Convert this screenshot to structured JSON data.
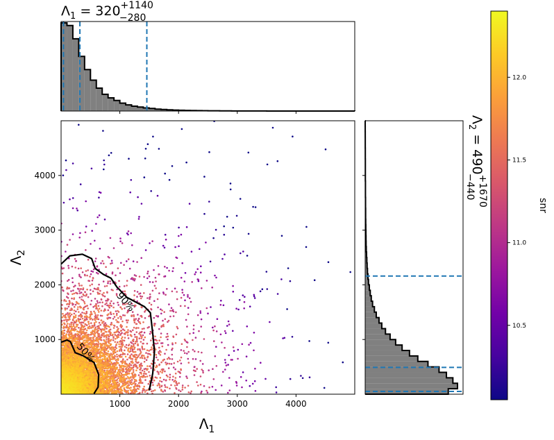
{
  "chart_data": [
    {
      "type": "histogram",
      "panel": "top-marginal",
      "title": {
        "base": "Λ",
        "sub": "1",
        "mid": " = 320",
        "sup": "+1140",
        "subsc": "−280"
      },
      "x_range": [
        0,
        5000
      ],
      "bin_width": 100,
      "relative_counts": [
        1.0,
        0.97,
        0.82,
        0.62,
        0.47,
        0.35,
        0.26,
        0.19,
        0.15,
        0.12,
        0.09,
        0.07,
        0.055,
        0.045,
        0.035,
        0.03,
        0.022,
        0.018,
        0.014,
        0.011,
        0.009,
        0.007,
        0.006,
        0.005,
        0.004,
        0.003,
        0.0025,
        0.002,
        0.0015,
        0.001,
        0.001,
        0.001,
        0.0008,
        0.0006,
        0.0005,
        0.0004,
        0.0003,
        0.0003,
        0.0002,
        0.0002,
        0.0001,
        0.0001,
        0.0001,
        0.0001,
        0.0001,
        0.0001,
        0.0001,
        0.0001,
        0.0001,
        0.0001
      ],
      "credible_lines": [
        40,
        320,
        1460
      ],
      "fill_color": "#808080",
      "line_color": "#1f77b4"
    },
    {
      "type": "scatter",
      "panel": "main",
      "xlabel": {
        "base": "Λ",
        "sub": "1"
      },
      "ylabel": {
        "base": "Λ",
        "sub": "2"
      },
      "xlim": [
        0,
        5000
      ],
      "ylim": [
        0,
        5000
      ],
      "xticks": [
        1000,
        2000,
        3000,
        4000
      ],
      "yticks": [
        1000,
        2000,
        3000,
        4000
      ],
      "point_count": 9000,
      "contours": [
        {
          "label": "50%",
          "points": [
            [
              0,
              950
            ],
            [
              100,
              990
            ],
            [
              160,
              960
            ],
            [
              240,
              760
            ],
            [
              380,
              700
            ],
            [
              560,
              580
            ],
            [
              640,
              360
            ],
            [
              630,
              130
            ],
            [
              560,
              10
            ]
          ]
        },
        {
          "label": "90%",
          "points": [
            [
              0,
              2380
            ],
            [
              150,
              2530
            ],
            [
              360,
              2560
            ],
            [
              520,
              2480
            ],
            [
              580,
              2300
            ],
            [
              720,
              2190
            ],
            [
              850,
              2120
            ],
            [
              950,
              1960
            ],
            [
              1120,
              1770
            ],
            [
              1420,
              1600
            ],
            [
              1520,
              1490
            ],
            [
              1560,
              1110
            ],
            [
              1590,
              780
            ],
            [
              1560,
              380
            ],
            [
              1500,
              70
            ]
          ]
        }
      ],
      "contour_labels": [
        {
          "text": "90%",
          "x": 1060,
          "y": 1650,
          "rotation": 48
        },
        {
          "text": "50%",
          "x": 380,
          "y": 720,
          "rotation": 48
        }
      ]
    },
    {
      "type": "histogram",
      "panel": "right-marginal",
      "orientation": "horizontal",
      "title": {
        "base": "Λ",
        "sub": "2",
        "mid": " = 490",
        "sup": "+1670",
        "subsc": "−440"
      },
      "y_range": [
        0,
        5000
      ],
      "bin_width": 100,
      "relative_counts": [
        0.9,
        1.0,
        0.95,
        0.88,
        0.8,
        0.68,
        0.57,
        0.48,
        0.4,
        0.33,
        0.27,
        0.22,
        0.18,
        0.15,
        0.12,
        0.1,
        0.08,
        0.066,
        0.055,
        0.045,
        0.036,
        0.03,
        0.025,
        0.021,
        0.018,
        0.015,
        0.012,
        0.01,
        0.009,
        0.008,
        0.007,
        0.006,
        0.005,
        0.005,
        0.004,
        0.004,
        0.003,
        0.003,
        0.003,
        0.002,
        0.002,
        0.002,
        0.002,
        0.0015,
        0.0015,
        0.001,
        0.001,
        0.0008,
        0.0005,
        0.0003
      ],
      "credible_lines": [
        50,
        490,
        2160
      ],
      "fill_color": "#808080",
      "line_color": "#1f77b4"
    },
    {
      "type": "colorbar",
      "panel": "colorbar",
      "label": "snr",
      "range": [
        10.05,
        12.4
      ],
      "ticks": [
        10.5,
        11.0,
        11.5,
        12.0
      ],
      "tick_labels": [
        "10.5",
        "11.0",
        "11.5",
        "12.0"
      ],
      "colormap": [
        "#0d0887",
        "#46039f",
        "#7201a8",
        "#9c179e",
        "#bd3786",
        "#d8576b",
        "#ed7953",
        "#fb9f3a",
        "#fdca26",
        "#f0f921"
      ]
    }
  ]
}
